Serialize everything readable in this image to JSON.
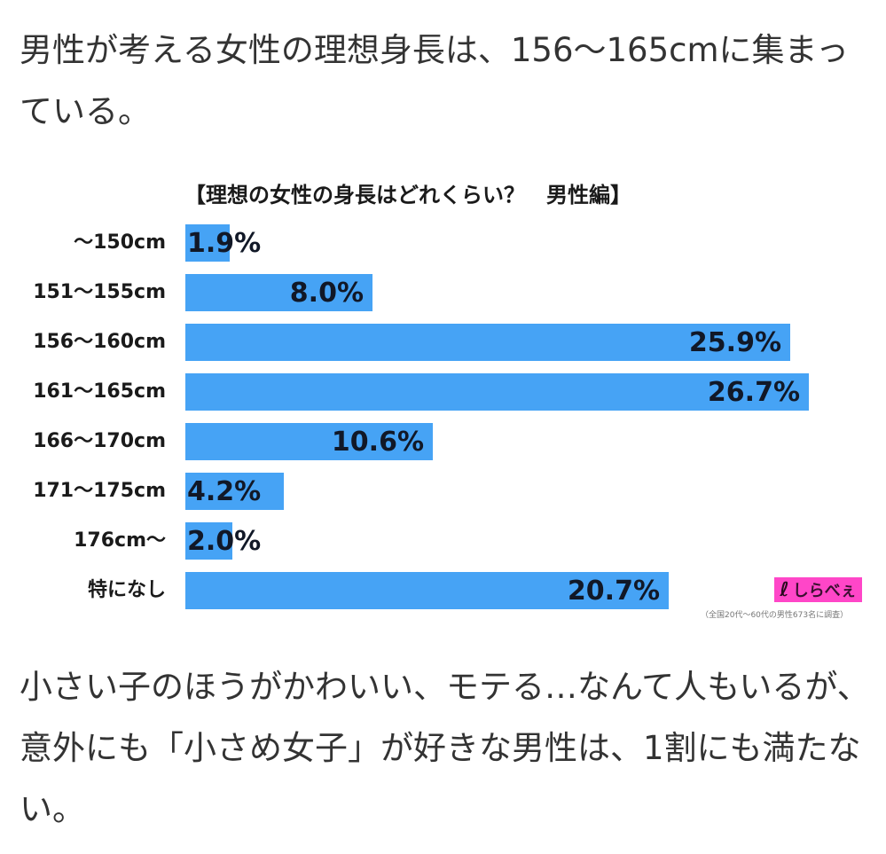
{
  "article": {
    "intro": "男性が考える女性の理想身長は、156〜165cmに集まっている。",
    "outro": "小さい子のほうがかわいい、モテる…なんて人もいるが、意外にも「小さめ女子」が好きな男性は、1割にも満たない。"
  },
  "chart": {
    "title": "【理想の女性の身長はどれくらい？　男性編】",
    "bar_color": "#46a3f5",
    "rows": [
      {
        "label": "〜150cm",
        "value": 1.9,
        "display": "1.9%"
      },
      {
        "label": "151〜155cm",
        "value": 8.0,
        "display": "8.0%"
      },
      {
        "label": "156〜160cm",
        "value": 25.9,
        "display": "25.9%"
      },
      {
        "label": "161〜165cm",
        "value": 26.7,
        "display": "26.7%"
      },
      {
        "label": "166〜170cm",
        "value": 10.6,
        "display": "10.6%"
      },
      {
        "label": "171〜175cm",
        "value": 4.2,
        "display": "4.2%"
      },
      {
        "label": "176cm〜",
        "value": 2.0,
        "display": "2.0%"
      },
      {
        "label": "特になし",
        "value": 20.7,
        "display": "20.7%"
      }
    ],
    "logo": {
      "mark": "ℓ",
      "text": "しらべぇ",
      "color": "#ff46c8"
    },
    "footnote": "（全国20代〜60代の男性673名に調査）"
  },
  "chart_data": {
    "type": "bar",
    "orientation": "horizontal",
    "title": "【理想の女性の身長はどれくらい？　男性編】",
    "categories": [
      "〜150cm",
      "151〜155cm",
      "156〜160cm",
      "161〜165cm",
      "166〜170cm",
      "171〜175cm",
      "176cm〜",
      "特になし"
    ],
    "values": [
      1.9,
      8.0,
      25.9,
      26.7,
      10.6,
      4.2,
      2.0,
      20.7
    ],
    "unit": "%",
    "xlabel": "",
    "ylabel": "",
    "grid": false,
    "legend": null,
    "annotations": [
      "（全国20代〜60代の男性673名に調査）",
      "しらべぇ"
    ]
  }
}
